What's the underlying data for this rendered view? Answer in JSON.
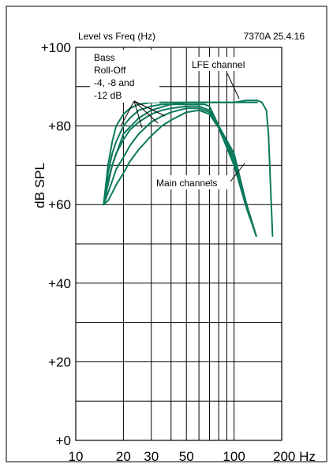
{
  "chart_data": {
    "type": "line",
    "title": "Level vs Freq (Hz)",
    "model_date": "7370A 25.4.16",
    "ylabel": "dB SPL",
    "xunit": "Hz",
    "xscale": "log",
    "xlim": [
      10,
      200
    ],
    "ylim": [
      0,
      100
    ],
    "xticks": [
      10,
      20,
      30,
      50,
      100,
      200
    ],
    "xtick_labels": [
      "10",
      "20",
      "30",
      "50",
      "100",
      "200 Hz"
    ],
    "yticks": [
      0,
      20,
      40,
      60,
      80,
      100
    ],
    "ytick_labels": [
      "+0",
      "+20",
      "+40",
      "+60",
      "+80",
      "+100"
    ],
    "grid": true,
    "line_color": "#0b7a5c",
    "annotations": {
      "bass_line1": "Bass",
      "bass_line2": "Roll-Off",
      "bass_line3": "-4, -8 and",
      "bass_line4": "-12 dB",
      "lfe": "LFE channel",
      "main": "Main channels"
    },
    "series": [
      {
        "x": [
          15,
          16,
          17,
          18,
          20,
          22,
          25,
          30,
          35,
          40,
          50,
          60,
          70,
          80,
          90,
          100,
          110,
          120,
          130,
          140
        ],
        "y": [
          60,
          70,
          76,
          80,
          83,
          84.5,
          85.5,
          86,
          86,
          86,
          86,
          86,
          86,
          86,
          86,
          86,
          86,
          86,
          86,
          86
        ]
      },
      {
        "x": [
          15,
          16,
          17,
          18,
          20,
          22,
          25,
          30,
          35,
          40,
          50,
          60,
          65,
          70,
          80,
          100,
          120,
          138
        ],
        "y": [
          60,
          68,
          73,
          76,
          80,
          82,
          84,
          85,
          85.5,
          85.5,
          85.5,
          85.5,
          85.5,
          85,
          80,
          73,
          60,
          52
        ]
      },
      {
        "x": [
          15,
          16,
          17,
          18,
          20,
          22,
          25,
          30,
          35,
          40,
          50,
          60,
          70,
          80,
          100,
          120,
          138
        ],
        "y": [
          60,
          66,
          70,
          73,
          76.5,
          79,
          81,
          83,
          84,
          84.5,
          85,
          85,
          84,
          80,
          72,
          60,
          52
        ]
      },
      {
        "x": [
          15,
          16,
          17,
          18,
          20,
          22,
          25,
          30,
          35,
          40,
          50,
          60,
          70,
          80,
          100,
          120,
          138
        ],
        "y": [
          60,
          63,
          66,
          69,
          72,
          75,
          78,
          81,
          82.5,
          83.5,
          84.5,
          84.5,
          83.5,
          80,
          71,
          60,
          52
        ]
      },
      {
        "x": [
          15,
          16,
          17,
          18,
          20,
          22,
          25,
          30,
          35,
          40,
          50,
          60,
          70,
          80,
          100,
          120,
          138
        ],
        "y": [
          60,
          61,
          63,
          65,
          68,
          71,
          74,
          77.5,
          80,
          81.5,
          83.5,
          84,
          83,
          79.5,
          70,
          59,
          52
        ]
      },
      {
        "x": [
          15,
          17,
          20,
          25,
          30,
          40,
          50,
          60,
          70,
          80,
          90,
          100,
          120,
          140,
          150,
          160,
          165,
          170,
          175
        ],
        "y": [
          60,
          70,
          78,
          82,
          84,
          85.5,
          86,
          86,
          86,
          86,
          86,
          86,
          86.5,
          86.5,
          86,
          84,
          78,
          65,
          52
        ]
      }
    ]
  }
}
